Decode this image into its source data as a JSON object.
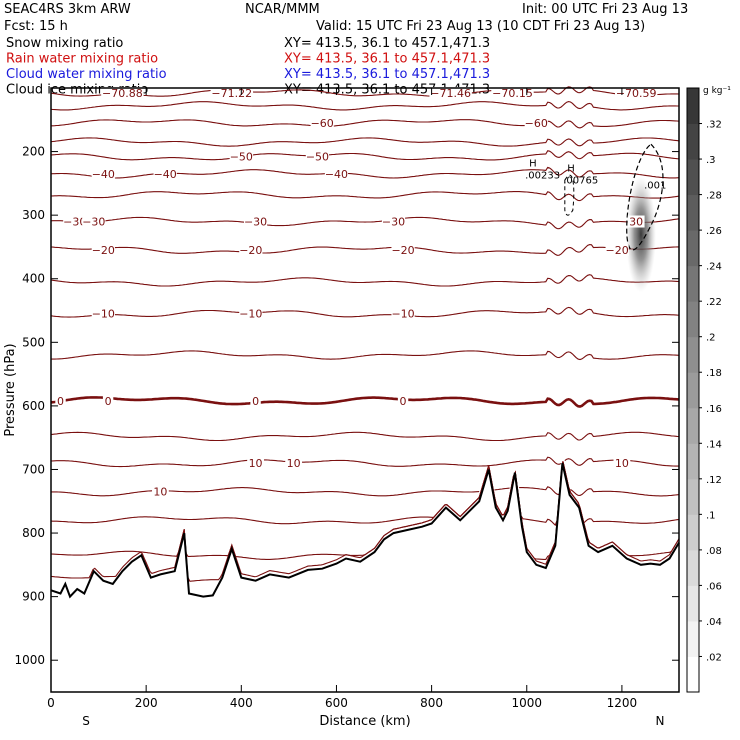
{
  "header": {
    "model": "SEAC4RS   3km ARW",
    "org": "NCAR/MMM",
    "init": "Init: 00 UTC Fri 23 Aug 13",
    "fcst": "Fcst:   15 h",
    "valid": "Valid: 15 UTC Fri 23 Aug 13 (10 CDT Fri 23 Aug 13)",
    "fields": [
      {
        "label": "Snow mixing ratio",
        "xy": "XY= 413.5, 36.1 to 457.1,471.3",
        "color": "#000000"
      },
      {
        "label": "Rain water mixing ratio",
        "xy": "XY= 413.5, 36.1 to 457.1,471.3",
        "color": "#d01010"
      },
      {
        "label": "Cloud water mixing ratio",
        "xy": "XY= 413.5, 36.1 to 457.1,471.3",
        "color": "#1a1adc"
      },
      {
        "label": "Cloud ice mixing ratio",
        "xy": "XY= 413.5, 36.1 to 457.1,471.3",
        "color": "#000000"
      }
    ]
  },
  "colors": {
    "temperature": "#7a1010",
    "terrain": "#000000",
    "frame": "#000000"
  },
  "chart_data": {
    "type": "contour",
    "xlabel": "Distance (km)",
    "ylabel": "Pressure (hPa)",
    "xlim": [
      0,
      1320
    ],
    "ylim": [
      100,
      1050
    ],
    "x_ticks": [
      0,
      200,
      400,
      600,
      800,
      1000,
      1200
    ],
    "y_ticks": [
      200,
      300,
      400,
      500,
      600,
      700,
      800,
      900,
      1000
    ],
    "x_end_labels": {
      "left": "S",
      "right": "N"
    },
    "colorbar": {
      "unit": "g kg⁻¹",
      "ticks": [
        ".02",
        ".04",
        ".06",
        ".08",
        ".1",
        ".12",
        ".14",
        ".16",
        ".18",
        ".2",
        ".22",
        ".24",
        ".26",
        ".28",
        ".3",
        ".32"
      ],
      "range": [
        0,
        0.34
      ]
    },
    "temperature_contours": [
      {
        "p": 108,
        "labels": [
          {
            "x": 150,
            "t": "−70.88"
          },
          {
            "x": 380,
            "t": "−71.22"
          },
          {
            "x": 840,
            "t": "−71.46"
          },
          {
            "x": 970,
            "t": "−70.15"
          },
          {
            "x": 1230,
            "t": "−70.59"
          }
        ]
      },
      {
        "p": 128,
        "labels": []
      },
      {
        "p": 155,
        "labels": [
          {
            "x": 570,
            "t": "−60"
          },
          {
            "x": 1020,
            "t": "−60"
          }
        ]
      },
      {
        "p": 185,
        "labels": []
      },
      {
        "p": 208,
        "labels": [
          {
            "x": 400,
            "t": "−50"
          },
          {
            "x": 560,
            "t": "−50"
          }
        ]
      },
      {
        "p": 235,
        "labels": [
          {
            "x": 110,
            "t": "−40"
          },
          {
            "x": 240,
            "t": "−40"
          },
          {
            "x": 600,
            "t": "−40"
          }
        ]
      },
      {
        "p": 268,
        "labels": []
      },
      {
        "p": 310,
        "labels": [
          {
            "x": 50,
            "t": "−30"
          },
          {
            "x": 90,
            "t": "−30"
          },
          {
            "x": 430,
            "t": "−30"
          },
          {
            "x": 720,
            "t": "−30"
          },
          {
            "x": 1230,
            "t": "30"
          }
        ]
      },
      {
        "p": 355,
        "labels": [
          {
            "x": 110,
            "t": "−20"
          },
          {
            "x": 420,
            "t": "−20"
          },
          {
            "x": 740,
            "t": "−20"
          },
          {
            "x": 1190,
            "t": "−20"
          }
        ]
      },
      {
        "p": 405,
        "labels": []
      },
      {
        "p": 455,
        "labels": [
          {
            "x": 110,
            "t": "−10"
          },
          {
            "x": 420,
            "t": "−10"
          },
          {
            "x": 740,
            "t": "−10"
          }
        ]
      },
      {
        "p": 520,
        "labels": []
      },
      {
        "p": 592,
        "labels": [
          {
            "x": 20,
            "t": "0"
          },
          {
            "x": 120,
            "t": "0"
          },
          {
            "x": 430,
            "t": "0"
          },
          {
            "x": 740,
            "t": "0"
          }
        ]
      },
      {
        "p": 648,
        "labels": []
      },
      {
        "p": 690,
        "labels": [
          {
            "x": 430,
            "t": "10"
          },
          {
            "x": 510,
            "t": "10"
          },
          {
            "x": 1200,
            "t": "10"
          }
        ]
      },
      {
        "p": 735,
        "labels": [
          {
            "x": 230,
            "t": "10"
          }
        ]
      },
      {
        "p": 780,
        "labels": []
      },
      {
        "p": 835,
        "labels": []
      },
      {
        "p": 872,
        "labels": []
      }
    ],
    "terrain_profile": [
      [
        0,
        890
      ],
      [
        20,
        895
      ],
      [
        30,
        880
      ],
      [
        40,
        900
      ],
      [
        55,
        888
      ],
      [
        70,
        895
      ],
      [
        90,
        860
      ],
      [
        110,
        875
      ],
      [
        130,
        880
      ],
      [
        150,
        860
      ],
      [
        170,
        845
      ],
      [
        190,
        835
      ],
      [
        210,
        870
      ],
      [
        230,
        865
      ],
      [
        260,
        860
      ],
      [
        280,
        800
      ],
      [
        290,
        895
      ],
      [
        320,
        900
      ],
      [
        340,
        898
      ],
      [
        360,
        870
      ],
      [
        380,
        825
      ],
      [
        400,
        870
      ],
      [
        430,
        875
      ],
      [
        460,
        865
      ],
      [
        500,
        870
      ],
      [
        540,
        858
      ],
      [
        570,
        856
      ],
      [
        600,
        848
      ],
      [
        620,
        840
      ],
      [
        650,
        845
      ],
      [
        680,
        830
      ],
      [
        700,
        810
      ],
      [
        720,
        800
      ],
      [
        750,
        795
      ],
      [
        780,
        790
      ],
      [
        800,
        785
      ],
      [
        830,
        760
      ],
      [
        860,
        780
      ],
      [
        880,
        765
      ],
      [
        900,
        750
      ],
      [
        920,
        700
      ],
      [
        935,
        760
      ],
      [
        950,
        780
      ],
      [
        960,
        765
      ],
      [
        975,
        705
      ],
      [
        990,
        790
      ],
      [
        1000,
        830
      ],
      [
        1020,
        850
      ],
      [
        1040,
        855
      ],
      [
        1060,
        820
      ],
      [
        1075,
        690
      ],
      [
        1090,
        740
      ],
      [
        1110,
        760
      ],
      [
        1130,
        820
      ],
      [
        1150,
        830
      ],
      [
        1180,
        820
      ],
      [
        1210,
        840
      ],
      [
        1240,
        850
      ],
      [
        1260,
        848
      ],
      [
        1280,
        850
      ],
      [
        1300,
        840
      ],
      [
        1320,
        815
      ]
    ],
    "cloud_ice_max": {
      "x": 1240,
      "p": 330,
      "value": 0.3
    },
    "snow_annotations": [
      {
        "x": 1005,
        "p": 242,
        "letter": "H",
        "value": ".00233"
      },
      {
        "x": 1085,
        "p": 250,
        "letter": "H",
        "value": ".00765"
      },
      {
        "x": 1255,
        "p": 258,
        "letter": "",
        "value": ".001"
      }
    ]
  }
}
